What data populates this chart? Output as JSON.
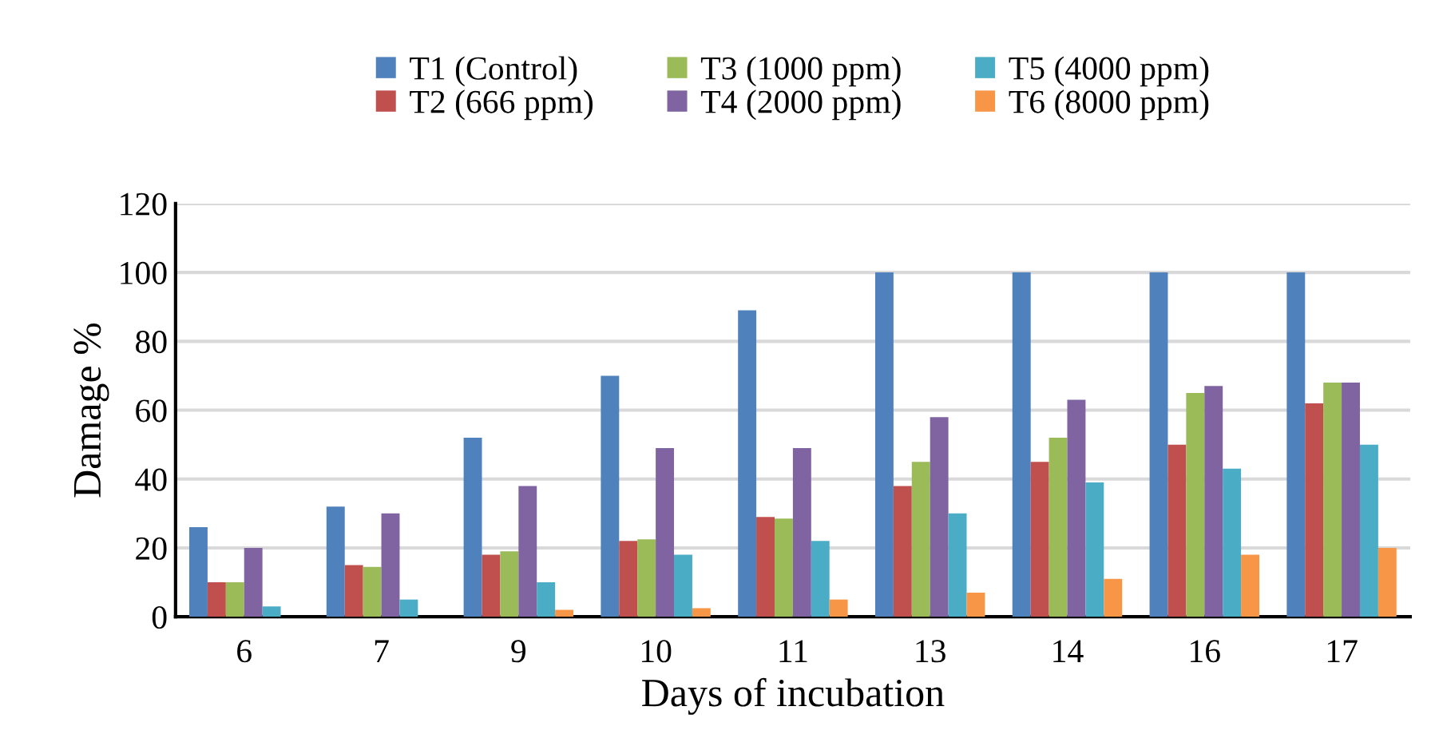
{
  "chart_data": {
    "type": "bar",
    "xlabel": "Days of incubation",
    "ylabel": "Damage %",
    "categories": [
      "6",
      "7",
      "9",
      "10",
      "11",
      "13",
      "14",
      "16",
      "17"
    ],
    "series": [
      {
        "name": "T1 (Control)",
        "color": "#4f81bd",
        "values": [
          26,
          32,
          52,
          70,
          89,
          100,
          100,
          100,
          100
        ]
      },
      {
        "name": "T2 (666 ppm)",
        "color": "#c0504d",
        "values": [
          10,
          15,
          18,
          22,
          29,
          38,
          45,
          50,
          62
        ]
      },
      {
        "name": "T3 (1000 ppm)",
        "color": "#9bbb59",
        "values": [
          10,
          14.5,
          19,
          22.5,
          28.5,
          45,
          52,
          65,
          68
        ]
      },
      {
        "name": "T4 (2000 ppm)",
        "color": "#8064a2",
        "values": [
          20,
          30,
          38,
          49,
          49,
          58,
          63,
          67,
          68
        ]
      },
      {
        "name": "T5 (4000 ppm)",
        "color": "#4bacc6",
        "values": [
          3,
          5,
          10,
          18,
          22,
          30,
          39,
          43,
          50
        ]
      },
      {
        "name": "T6 (8000 ppm)",
        "color": "#f79646",
        "values": [
          0,
          0,
          2,
          2.5,
          5,
          7,
          11,
          18,
          20
        ]
      }
    ],
    "ylim": [
      0,
      120
    ],
    "yticks": [
      0,
      20,
      40,
      60,
      80,
      100,
      120
    ],
    "grid": "y",
    "legend": "top"
  }
}
